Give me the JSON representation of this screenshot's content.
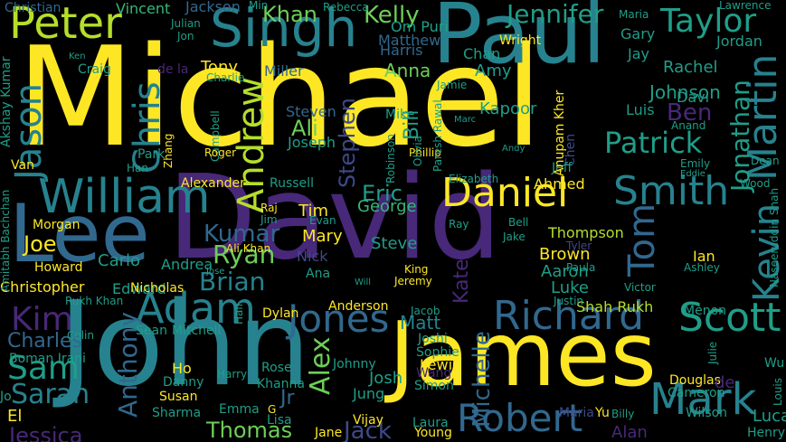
{
  "palette": {
    "background": "#000000",
    "yellow": "#fde725",
    "lime": "#b5de2b",
    "green": "#6ece58",
    "seagreen": "#35b779",
    "teal": "#1f9e89",
    "cyan": "#26828e",
    "blue": "#31688e",
    "indigo": "#3e4989",
    "purple": "#482878",
    "deep": "#440154"
  },
  "words": [
    {
      "text": "Michael",
      "color": "yellow"
    },
    {
      "text": "David",
      "color": "purple"
    },
    {
      "text": "John",
      "color": "cyan"
    },
    {
      "text": "James",
      "color": "yellow"
    },
    {
      "text": "Paul",
      "color": "cyan"
    },
    {
      "text": "Lee",
      "color": "blue"
    },
    {
      "text": "Peter",
      "color": "lime"
    },
    {
      "text": "Singh",
      "color": "cyan"
    },
    {
      "text": "William",
      "color": "cyan"
    },
    {
      "text": "Daniel",
      "color": "yellow"
    },
    {
      "text": "Smith",
      "color": "cyan"
    },
    {
      "text": "Robert",
      "color": "blue"
    },
    {
      "text": "Mark",
      "color": "cyan"
    },
    {
      "text": "Richard",
      "color": "blue"
    },
    {
      "text": "Adam",
      "color": "cyan"
    },
    {
      "text": "Jones",
      "color": "blue"
    },
    {
      "text": "Scott",
      "color": "teal"
    },
    {
      "text": "Patrick",
      "color": "teal"
    },
    {
      "text": "Andrew",
      "color": "lime"
    },
    {
      "text": "Chris",
      "color": "cyan"
    },
    {
      "text": "Jason",
      "color": "cyan"
    },
    {
      "text": "Martin",
      "color": "cyan"
    },
    {
      "text": "Jonathan",
      "color": "teal"
    },
    {
      "text": "Kevin",
      "color": "cyan"
    },
    {
      "text": "Tom",
      "color": "blue"
    },
    {
      "text": "Taylor",
      "color": "teal"
    },
    {
      "text": "Jennifer",
      "color": "teal"
    },
    {
      "text": "Kelly",
      "color": "green"
    },
    {
      "text": "Khan",
      "color": "green"
    },
    {
      "text": "Kim",
      "color": "purple"
    },
    {
      "text": "Sam",
      "color": "teal"
    },
    {
      "text": "Sarah",
      "color": "cyan"
    },
    {
      "text": "Anthony",
      "color": "blue"
    },
    {
      "text": "Charles",
      "color": "blue"
    },
    {
      "text": "Alex",
      "color": "green"
    },
    {
      "text": "Michelle",
      "color": "blue"
    },
    {
      "text": "Kate",
      "color": "purple"
    },
    {
      "text": "Stephen",
      "color": "indigo"
    },
    {
      "text": "Bill",
      "color": "teal"
    },
    {
      "text": "Ben",
      "color": "purple"
    },
    {
      "text": "Brian",
      "color": "cyan"
    },
    {
      "text": "Ryan",
      "color": "green"
    },
    {
      "text": "Kumar",
      "color": "blue"
    },
    {
      "text": "Joe",
      "color": "yellow"
    },
    {
      "text": "Eric",
      "color": "teal"
    },
    {
      "text": "Ali",
      "color": "green"
    },
    {
      "text": "Thomas",
      "color": "green"
    },
    {
      "text": "Jessica",
      "color": "purple"
    },
    {
      "text": "Jack",
      "color": "indigo"
    },
    {
      "text": "Luca",
      "color": "teal"
    },
    {
      "text": "Matt",
      "color": "cyan"
    },
    {
      "text": "Johnson",
      "color": "teal"
    },
    {
      "text": "Tim",
      "color": "yellow"
    },
    {
      "text": "Mary",
      "color": "yellow"
    },
    {
      "text": "Vincent",
      "color": "seagreen"
    },
    {
      "text": "Jackson",
      "color": "blue"
    },
    {
      "text": "Christian",
      "color": "blue"
    },
    {
      "text": "Matthew",
      "color": "blue"
    },
    {
      "text": "Harris",
      "color": "blue"
    },
    {
      "text": "Anna",
      "color": "green"
    },
    {
      "text": "Amy",
      "color": "teal"
    },
    {
      "text": "Chan",
      "color": "teal"
    },
    {
      "text": "Gary",
      "color": "teal"
    },
    {
      "text": "Jay",
      "color": "teal"
    },
    {
      "text": "Jordan",
      "color": "teal"
    },
    {
      "text": "Rachel",
      "color": "teal"
    },
    {
      "text": "Davi",
      "color": "teal"
    },
    {
      "text": "Luis",
      "color": "teal"
    },
    {
      "text": "Kapoor",
      "color": "teal"
    },
    {
      "text": "Tony",
      "color": "yellow"
    },
    {
      "text": "Miller",
      "color": "blue"
    },
    {
      "text": "Steven",
      "color": "blue"
    },
    {
      "text": "Joseph",
      "color": "teal"
    },
    {
      "text": "Mike",
      "color": "teal"
    },
    {
      "text": "George",
      "color": "seagreen"
    },
    {
      "text": "Steve",
      "color": "teal"
    },
    {
      "text": "Brown",
      "color": "yellow"
    },
    {
      "text": "Aaron",
      "color": "teal"
    },
    {
      "text": "Luke",
      "color": "teal"
    },
    {
      "text": "Thompson",
      "color": "lime"
    },
    {
      "text": "Ian",
      "color": "yellow"
    },
    {
      "text": "Shah Rukh",
      "color": "lime"
    },
    {
      "text": "Menon",
      "color": "teal"
    },
    {
      "text": "Morgan",
      "color": "yellow"
    },
    {
      "text": "Howard",
      "color": "yellow"
    },
    {
      "text": "Christopher",
      "color": "yellow"
    },
    {
      "text": "Carlo",
      "color": "teal"
    },
    {
      "text": "Andrea",
      "color": "teal"
    },
    {
      "text": "Edward",
      "color": "teal"
    },
    {
      "text": "Alexander",
      "color": "yellow"
    },
    {
      "text": "Russell",
      "color": "teal"
    },
    {
      "text": "Nick",
      "color": "indigo"
    },
    {
      "text": "Ana",
      "color": "teal"
    },
    {
      "text": "Anderson",
      "color": "yellow"
    },
    {
      "text": "Dylan",
      "color": "yellow"
    },
    {
      "text": "Sean",
      "color": "teal"
    },
    {
      "text": "Mitchell",
      "color": "teal"
    },
    {
      "text": "Ho",
      "color": "yellow"
    },
    {
      "text": "Danny",
      "color": "teal"
    },
    {
      "text": "Susan",
      "color": "yellow"
    },
    {
      "text": "Emma",
      "color": "teal"
    },
    {
      "text": "Sharma",
      "color": "teal"
    },
    {
      "text": "Lisa",
      "color": "teal"
    },
    {
      "text": "Rose",
      "color": "teal"
    },
    {
      "text": "Khanna",
      "color": "teal"
    },
    {
      "text": "Jr",
      "color": "blue"
    },
    {
      "text": "Jane",
      "color": "yellow"
    },
    {
      "text": "Johnny",
      "color": "teal"
    },
    {
      "text": "Josh",
      "color": "teal"
    },
    {
      "text": "Jung",
      "color": "teal"
    },
    {
      "text": "Vijay",
      "color": "yellow"
    },
    {
      "text": "Laura",
      "color": "teal"
    },
    {
      "text": "Young",
      "color": "yellow"
    },
    {
      "text": "Lewis",
      "color": "yellow"
    },
    {
      "text": "Wang",
      "color": "purple"
    },
    {
      "text": "Simon",
      "color": "teal"
    },
    {
      "text": "Sophie",
      "color": "teal"
    },
    {
      "text": "Joshi",
      "color": "teal"
    },
    {
      "text": "Wilson",
      "color": "teal"
    },
    {
      "text": "Douglas",
      "color": "yellow"
    },
    {
      "text": "Cameron",
      "color": "teal"
    },
    {
      "text": "Henry",
      "color": "teal"
    },
    {
      "text": "Alan",
      "color": "purple"
    },
    {
      "text": "Maria",
      "color": "indigo"
    },
    {
      "text": "Yu",
      "color": "yellow"
    },
    {
      "text": "Billy",
      "color": "teal"
    },
    {
      "text": "Julie",
      "color": "teal"
    },
    {
      "text": "Wu",
      "color": "teal"
    },
    {
      "text": "Om Puri",
      "color": "teal"
    },
    {
      "text": "Chen",
      "color": "indigo"
    },
    {
      "text": "Jeff",
      "color": "teal"
    },
    {
      "text": "Emily",
      "color": "teal"
    },
    {
      "text": "Elizabeth",
      "color": "teal"
    },
    {
      "text": "Ahmed",
      "color": "yellow"
    },
    {
      "text": "Wright",
      "color": "yellow"
    },
    {
      "text": "Rebecca",
      "color": "teal"
    },
    {
      "text": "Maria",
      "color": "teal"
    },
    {
      "text": "Lawrence",
      "color": "teal"
    },
    {
      "text": "Julian",
      "color": "teal"
    },
    {
      "text": "Ken",
      "color": "teal"
    },
    {
      "text": "Marc",
      "color": "teal"
    },
    {
      "text": "Jamie",
      "color": "teal"
    },
    {
      "text": "Andy",
      "color": "teal"
    },
    {
      "text": "Anand",
      "color": "teal"
    },
    {
      "text": "Eddie",
      "color": "teal"
    },
    {
      "text": "Dean",
      "color": "teal"
    },
    {
      "text": "Wood",
      "color": "teal"
    },
    {
      "text": "Craig",
      "color": "teal"
    },
    {
      "text": "Charlie",
      "color": "teal"
    },
    {
      "text": "Campbell",
      "color": "teal"
    },
    {
      "text": "Zhang",
      "color": "yellow"
    },
    {
      "text": "Roger",
      "color": "yellow"
    },
    {
      "text": "Park",
      "color": "teal"
    },
    {
      "text": "Han",
      "color": "teal"
    },
    {
      "text": "Van",
      "color": "yellow"
    },
    {
      "text": "de la",
      "color": "purple"
    },
    {
      "text": "Raj",
      "color": "yellow"
    },
    {
      "text": "Jim",
      "color": "teal"
    },
    {
      "text": "Evan",
      "color": "teal"
    },
    {
      "text": "Ali Khan",
      "color": "yellow"
    },
    {
      "text": "Jose",
      "color": "teal"
    },
    {
      "text": "Ray",
      "color": "teal"
    },
    {
      "text": "Bell",
      "color": "teal"
    },
    {
      "text": "Jake",
      "color": "teal"
    },
    {
      "text": "Tyler",
      "color": "indigo"
    },
    {
      "text": "Paula",
      "color": "teal"
    },
    {
      "text": "King",
      "color": "yellow"
    },
    {
      "text": "Jeremy",
      "color": "yellow"
    },
    {
      "text": "Jacob",
      "color": "teal"
    },
    {
      "text": "Will",
      "color": "teal"
    },
    {
      "text": "Justin",
      "color": "teal"
    },
    {
      "text": "Victor",
      "color": "teal"
    },
    {
      "text": "Ashley",
      "color": "teal"
    },
    {
      "text": "Nicholas",
      "color": "yellow"
    },
    {
      "text": "Rukh Khan",
      "color": "teal"
    },
    {
      "text": "Boman Irani",
      "color": "teal"
    },
    {
      "text": "Colin",
      "color": "teal"
    },
    {
      "text": "Harry",
      "color": "teal"
    },
    {
      "text": "Hall",
      "color": "teal"
    },
    {
      "text": "Phillip",
      "color": "yellow"
    },
    {
      "text": "Olivia",
      "color": "teal"
    },
    {
      "text": "Robinson",
      "color": "teal"
    },
    {
      "text": "Paresh Rawal",
      "color": "teal"
    },
    {
      "text": "Anupam Kher",
      "color": "yellow"
    },
    {
      "text": "Akshay Kumar",
      "color": "teal"
    },
    {
      "text": "Amitabh Bachchan",
      "color": "teal"
    },
    {
      "text": "Naseeruddin Shah",
      "color": "teal"
    },
    {
      "text": "Louis",
      "color": "teal"
    },
    {
      "text": "de",
      "color": "purple"
    },
    {
      "text": "El",
      "color": "yellow"
    },
    {
      "text": "Jo",
      "color": "teal"
    },
    {
      "text": "Min",
      "color": "teal"
    },
    {
      "text": "Jon",
      "color": "teal"
    },
    {
      "text": "G",
      "color": "yellow"
    }
  ]
}
